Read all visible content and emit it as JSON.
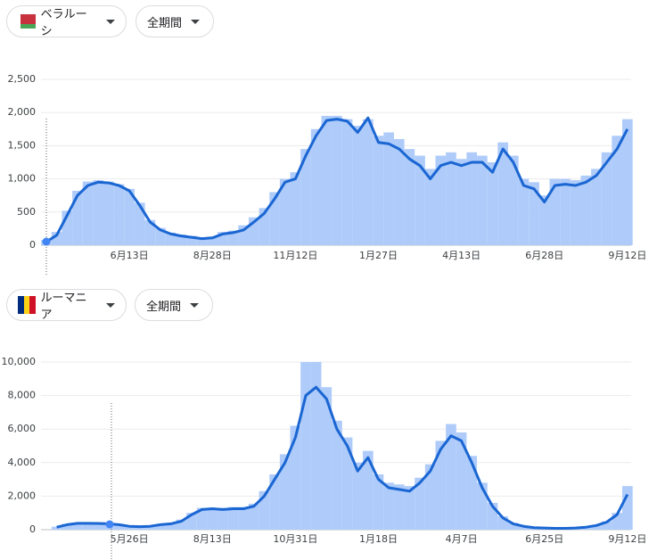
{
  "controls": [
    {
      "country": "ベラルーシ",
      "period": "全期間"
    },
    {
      "country": "ルーマニア",
      "period": "全期間"
    }
  ],
  "chart_data": [
    {
      "type": "bar-line",
      "categories": [
        null,
        null,
        null,
        null,
        null,
        null,
        null,
        null,
        "6月13日",
        null,
        null,
        null,
        null,
        null,
        null,
        null,
        "8月28日",
        null,
        null,
        null,
        null,
        null,
        null,
        null,
        "11月12日",
        null,
        null,
        null,
        null,
        null,
        null,
        null,
        "1月27日",
        null,
        null,
        null,
        null,
        null,
        null,
        null,
        "4月13日",
        null,
        null,
        null,
        null,
        null,
        null,
        null,
        "6月28日",
        null,
        null,
        null,
        null,
        null,
        null,
        null,
        "9月12日"
      ],
      "ylim": [
        0,
        2500
      ],
      "yticks": [
        0,
        500,
        {
          "value": 1000,
          "label": "1,000"
        },
        {
          "value": 1500,
          "label": "1,500"
        },
        {
          "value": 2000,
          "label": "2,000"
        },
        {
          "value": 2500,
          "label": "2,500"
        }
      ],
      "grid": true,
      "series": [
        {
          "type": "bar",
          "color": "#aecbfa",
          "values": [
            80,
            200,
            520,
            820,
            960,
            980,
            960,
            920,
            850,
            640,
            380,
            260,
            190,
            160,
            140,
            120,
            130,
            200,
            220,
            300,
            420,
            560,
            800,
            1000,
            1100,
            1450,
            1750,
            1950,
            1950,
            1900,
            1800,
            1900,
            1650,
            1700,
            1600,
            1450,
            1350,
            1150,
            1350,
            1400,
            1300,
            1400,
            1350,
            1250,
            1550,
            1350,
            1000,
            950,
            750,
            1000,
            1000,
            980,
            1050,
            1150,
            1400,
            1650,
            1900
          ]
        },
        {
          "type": "line",
          "color": "#1a66d2",
          "values": [
            50,
            150,
            450,
            750,
            900,
            950,
            940,
            900,
            820,
            600,
            350,
            230,
            170,
            140,
            120,
            100,
            110,
            170,
            190,
            230,
            350,
            480,
            700,
            950,
            1000,
            1350,
            1650,
            1880,
            1900,
            1870,
            1700,
            1920,
            1550,
            1530,
            1450,
            1300,
            1200,
            1000,
            1200,
            1250,
            1200,
            1250,
            1250,
            1100,
            1450,
            1250,
            900,
            850,
            650,
            900,
            920,
            900,
            950,
            1050,
            1250,
            1450,
            1750
          ]
        }
      ]
    },
    {
      "type": "bar-line",
      "categories": [
        null,
        null,
        null,
        null,
        null,
        null,
        null,
        null,
        "5月26日",
        null,
        null,
        null,
        null,
        null,
        null,
        null,
        "8月13日",
        null,
        null,
        null,
        null,
        null,
        null,
        null,
        "10月31日",
        null,
        null,
        null,
        null,
        null,
        null,
        null,
        "1月18日",
        null,
        null,
        null,
        null,
        null,
        null,
        null,
        "4月7日",
        null,
        null,
        null,
        null,
        null,
        null,
        null,
        "6月25日",
        null,
        null,
        null,
        null,
        null,
        null,
        null,
        "9月12日"
      ],
      "ylim": [
        0,
        10000
      ],
      "yticks": [
        0,
        {
          "value": 2000,
          "label": "2,000"
        },
        {
          "value": 4000,
          "label": "4,000"
        },
        {
          "value": 6000,
          "label": "6,000"
        },
        {
          "value": 8000,
          "label": "8,000"
        },
        {
          "value": 10000,
          "label": "10,000"
        }
      ],
      "grid": true,
      "series": [
        {
          "type": "bar",
          "color": "#aecbfa",
          "values": [
            null,
            180,
            350,
            420,
            420,
            400,
            380,
            330,
            230,
            200,
            230,
            330,
            400,
            600,
            1000,
            1300,
            1300,
            1300,
            1350,
            1350,
            1550,
            2300,
            3300,
            4500,
            6200,
            10000,
            10000,
            8500,
            6500,
            5500,
            4000,
            4700,
            3300,
            2800,
            2700,
            2600,
            3100,
            3900,
            5300,
            6300,
            5800,
            4400,
            2800,
            1600,
            800,
            400,
            230,
            140,
            110,
            90,
            90,
            110,
            170,
            280,
            500,
            1000,
            2600
          ]
        },
        {
          "type": "line",
          "color": "#1a66d2",
          "values": [
            null,
            150,
            300,
            380,
            380,
            370,
            350,
            300,
            200,
            180,
            200,
            300,
            350,
            500,
            900,
            1200,
            1250,
            1200,
            1250,
            1250,
            1400,
            2000,
            3000,
            4000,
            5500,
            8000,
            8500,
            7800,
            6000,
            5000,
            3500,
            4300,
            3000,
            2500,
            2400,
            2300,
            2800,
            3500,
            4800,
            5600,
            5300,
            4000,
            2500,
            1400,
            700,
            350,
            200,
            120,
            100,
            80,
            80,
            100,
            150,
            250,
            450,
            900,
            2100
          ]
        }
      ]
    }
  ]
}
